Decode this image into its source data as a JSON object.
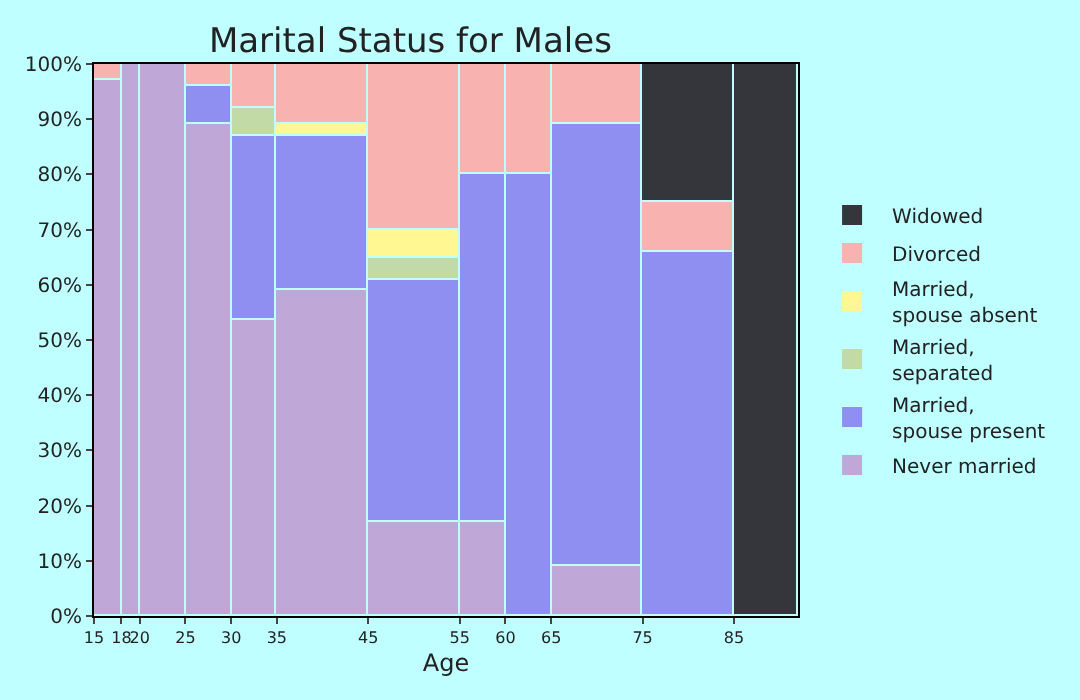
{
  "chart_data": {
    "type": "bar",
    "stacked": true,
    "title": "Marital Status for Males",
    "xlabel": "Age",
    "x": [
      16.5,
      19,
      22.5,
      27.5,
      32.5,
      40,
      50,
      57.5,
      62.5,
      70,
      80,
      88.5
    ],
    "xlim": [
      15,
      92
    ],
    "xticks": [
      15,
      18,
      20,
      25,
      30,
      35,
      45,
      55,
      60,
      65,
      75,
      85
    ],
    "ylim": [
      0,
      100
    ],
    "yticks": [
      {
        "value": 0,
        "label": "0%"
      },
      {
        "value": 10,
        "label": "10%"
      },
      {
        "value": 20,
        "label": "20%"
      },
      {
        "value": 30,
        "label": "30%"
      },
      {
        "value": 40,
        "label": "40%"
      },
      {
        "value": 50,
        "label": "50%"
      },
      {
        "value": 60,
        "label": "60%"
      },
      {
        "value": 70,
        "label": "70%"
      },
      {
        "value": 80,
        "label": "80%"
      },
      {
        "value": 90,
        "label": "90%"
      },
      {
        "value": 100,
        "label": "100%"
      }
    ],
    "legend": "right",
    "series": [
      {
        "name": "Never married",
        "color": "#bfa8d8",
        "values": [
          97,
          100,
          100,
          89,
          53.5,
          59,
          17,
          17,
          null,
          9,
          null,
          null
        ]
      },
      {
        "name": "Married, spouse present",
        "color": "#8f8ff2",
        "values": [
          null,
          null,
          null,
          7,
          33.5,
          28,
          44,
          63,
          80,
          80,
          66,
          null
        ]
      },
      {
        "name": "Married, separated",
        "color": "#c2dba6",
        "values": [
          null,
          null,
          null,
          null,
          5,
          null,
          4,
          null,
          null,
          null,
          null,
          null
        ]
      },
      {
        "name": "Married, spouse absent",
        "color": "#fff892",
        "values": [
          null,
          null,
          null,
          null,
          null,
          2,
          5,
          null,
          null,
          null,
          null,
          null
        ]
      },
      {
        "name": "Divorced",
        "color": "#f8b2b0",
        "values": [
          3,
          null,
          null,
          4,
          8,
          11,
          30,
          20,
          20,
          11,
          9,
          null
        ]
      },
      {
        "name": "Widowed",
        "color": "#35363c",
        "values": [
          null,
          null,
          null,
          null,
          null,
          null,
          null,
          null,
          null,
          null,
          25,
          100
        ]
      }
    ]
  }
}
